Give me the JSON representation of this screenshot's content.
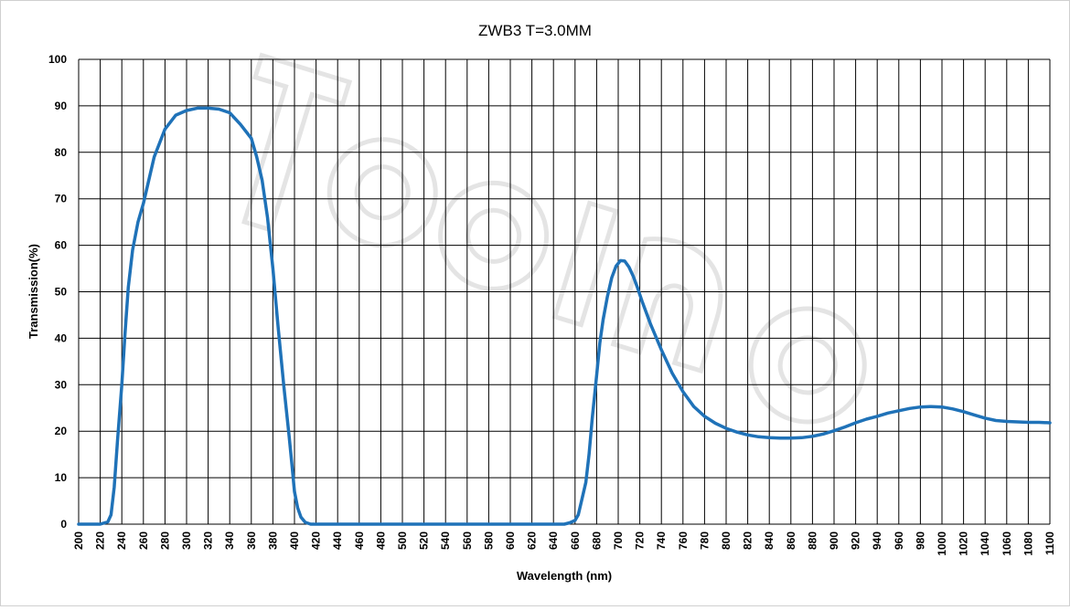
{
  "chart_data": {
    "type": "line",
    "title": "ZWB3 T=3.0MM",
    "xlabel": "Wavelength (nm)",
    "ylabel": "Transmission(%)",
    "xlim": [
      200,
      1100
    ],
    "ylim": [
      0,
      100
    ],
    "x_ticks": [
      200,
      220,
      240,
      260,
      280,
      300,
      320,
      340,
      360,
      380,
      400,
      420,
      440,
      460,
      480,
      500,
      520,
      540,
      560,
      580,
      600,
      620,
      640,
      660,
      680,
      700,
      720,
      740,
      760,
      780,
      800,
      820,
      840,
      860,
      880,
      900,
      920,
      940,
      960,
      980,
      1000,
      1020,
      1040,
      1060,
      1080,
      1100
    ],
    "y_ticks": [
      0,
      10,
      20,
      30,
      40,
      50,
      60,
      70,
      80,
      90,
      100
    ],
    "grid": true,
    "legend": "none",
    "line_color": "#1f72b8",
    "series": [
      {
        "x": [
          200,
          210,
          220,
          227,
          230,
          233,
          236,
          240,
          243,
          246,
          250,
          255,
          260,
          265,
          270,
          275,
          280,
          290,
          300,
          310,
          320,
          330,
          340,
          350,
          360,
          365,
          370,
          375,
          380,
          385,
          390,
          395,
          398,
          400,
          403,
          406,
          410,
          415,
          420,
          440,
          500,
          560,
          620,
          650,
          655,
          660,
          663,
          666,
          670,
          673,
          676,
          680,
          683,
          686,
          690,
          694,
          698,
          702,
          706,
          710,
          714,
          718,
          722,
          726,
          730,
          740,
          750,
          760,
          770,
          780,
          790,
          800,
          810,
          820,
          830,
          840,
          850,
          860,
          870,
          880,
          890,
          900,
          910,
          920,
          930,
          940,
          950,
          960,
          970,
          980,
          990,
          1000,
          1010,
          1020,
          1030,
          1040,
          1050,
          1060,
          1070,
          1080,
          1090,
          1100
        ],
        "y": [
          0,
          0,
          0,
          0.5,
          2,
          8,
          18,
          30,
          41,
          51,
          59,
          65,
          69,
          74,
          79,
          82,
          85,
          88,
          89,
          89.5,
          89.5,
          89.3,
          88.5,
          86,
          83,
          79,
          74,
          66,
          55,
          42,
          30,
          19,
          12,
          7,
          3.5,
          1.5,
          0.4,
          0,
          0,
          0,
          0,
          0,
          0,
          0,
          0.3,
          0.8,
          2,
          5,
          9,
          15,
          23,
          32,
          39,
          44,
          49,
          53,
          55.5,
          56.7,
          56.6,
          55.3,
          53.3,
          50.8,
          48,
          45.5,
          43,
          37.5,
          32.5,
          28.5,
          25.3,
          23.2,
          21.7,
          20.6,
          19.8,
          19.2,
          18.8,
          18.6,
          18.5,
          18.5,
          18.6,
          18.9,
          19.4,
          20.1,
          20.9,
          21.8,
          22.6,
          23.2,
          23.9,
          24.4,
          24.9,
          25.2,
          25.3,
          25.2,
          24.8,
          24.2,
          23.5,
          22.8,
          22.3,
          22.1,
          22.0,
          21.9,
          21.9,
          21.8
        ]
      }
    ]
  }
}
